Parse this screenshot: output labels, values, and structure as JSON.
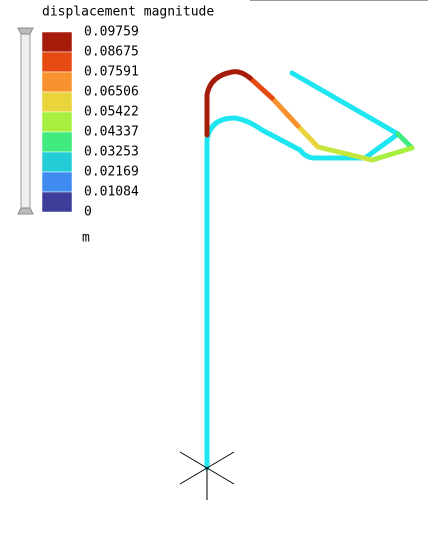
{
  "legend": {
    "title": "displacement magnitude",
    "labels": [
      "0.09759",
      "0.08675",
      "0.07591",
      "0.06506",
      "0.05422",
      "0.04337",
      "0.03253",
      "0.02169",
      "0.01084",
      "0"
    ],
    "unit": "m"
  }
}
